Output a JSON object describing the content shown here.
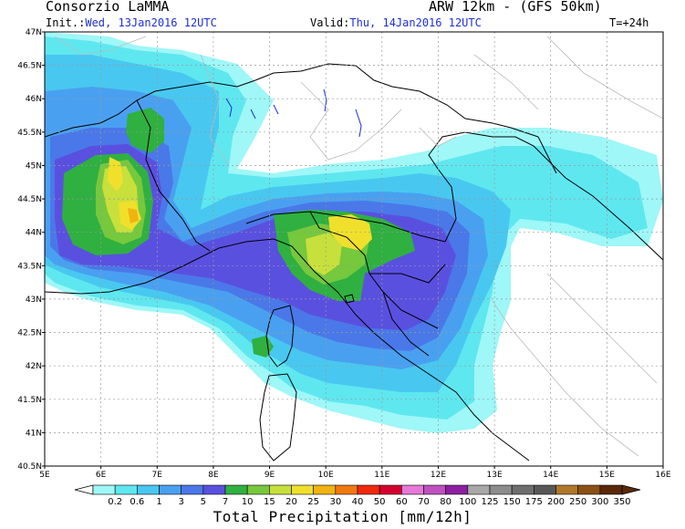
{
  "header": {
    "org": "Consorzio LaMMA",
    "model": "ARW 12km - (GFS 50km)",
    "init_label": "Init.:",
    "init_value": "Wed, 13Jan2016 12UTC",
    "valid_label": "Valid:",
    "valid_value": "Thu, 14Jan2016 12UTC",
    "lead_time": "T=+24h"
  },
  "axes": {
    "lat_labels": [
      "47N",
      "46.5N",
      "46N",
      "45.5N",
      "45N",
      "44.5N",
      "44N",
      "43.5N",
      "43N",
      "42.5N",
      "42N",
      "41.5N",
      "41N",
      "40.5N"
    ],
    "lon_labels": [
      "5E",
      "6E",
      "7E",
      "8E",
      "9E",
      "10E",
      "11E",
      "12E",
      "13E",
      "14E",
      "15E",
      "16E"
    ]
  },
  "legend": {
    "title": "Total Precipitation [mm/12h]",
    "labels": [
      "0.2",
      "0.6",
      "1",
      "3",
      "5",
      "7",
      "10",
      "15",
      "20",
      "25",
      "30",
      "40",
      "50",
      "60",
      "70",
      "80",
      "100",
      "125",
      "150",
      "175",
      "200",
      "250",
      "300",
      "350"
    ],
    "colors": [
      "#9ff7f7",
      "#5fe7f0",
      "#48c8f0",
      "#4aa0f0",
      "#4a78e8",
      "#5a50e0",
      "#2fb040",
      "#76c83c",
      "#c8e03c",
      "#f0e02c",
      "#f0b410",
      "#f07810",
      "#f0280c",
      "#d40030",
      "#e678d8",
      "#c050c0",
      "#8c1ea0",
      "#a8a8a8",
      "#8c8c8c",
      "#6e6e6e",
      "#585858",
      "#b07828",
      "#8c5014",
      "#5a2808"
    ]
  },
  "map": {
    "colors": {
      "light_cyan": "#9ff7f7",
      "cyan": "#5fe7f0",
      "sky": "#48c8f0",
      "blue": "#4aa0f0",
      "royal": "#4a78e8",
      "indigo": "#5a50e0",
      "green": "#2fb040",
      "lime": "#76c83c",
      "yellowgreen": "#c8e03c",
      "yellow": "#f0e02c",
      "orange": "#f0b410"
    }
  }
}
